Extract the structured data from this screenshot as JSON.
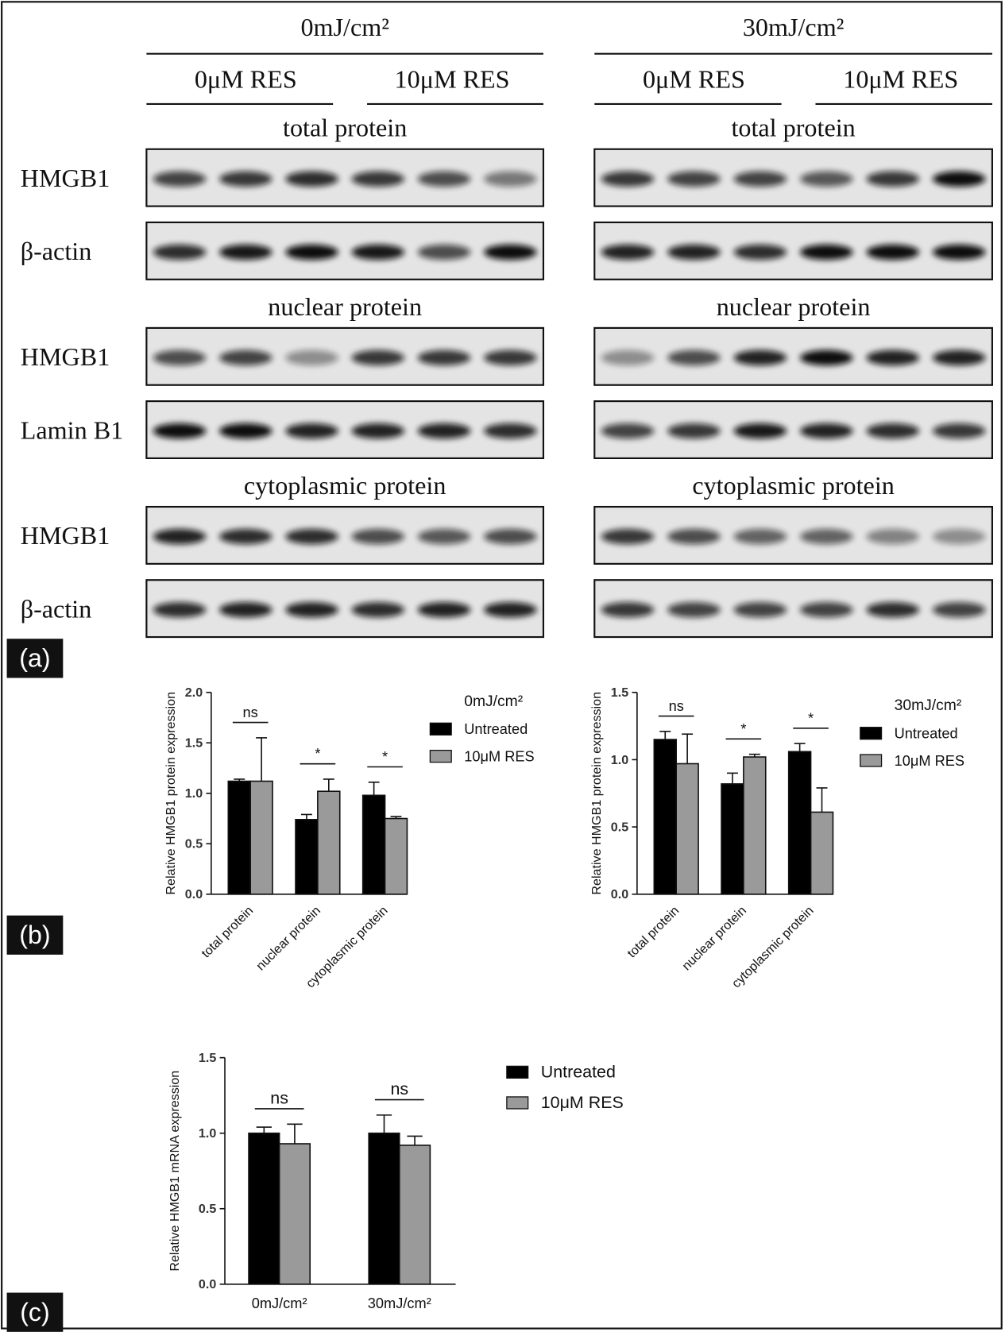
{
  "panel_labels": [
    "(a)",
    "(b)",
    "(c)"
  ],
  "blots": {
    "groups": [
      {
        "title": "0mJ/cm²",
        "treatments": [
          "0μM RES",
          "10μM RES"
        ]
      },
      {
        "title": "30mJ/cm²",
        "treatments": [
          "0μM RES",
          "10μM RES"
        ]
      }
    ],
    "sections": [
      {
        "title": "total protein",
        "rows": [
          "HMGB1",
          "β-actin"
        ]
      },
      {
        "title": "nuclear protein",
        "rows": [
          "HMGB1",
          "Lamin B1"
        ]
      },
      {
        "title": "cytoplasmic protein",
        "rows": [
          "HMGB1",
          "β-actin"
        ]
      }
    ]
  },
  "chart_data": [
    {
      "type": "bar",
      "ylabel": "Relative HMGB1 protein expression",
      "legend_title": "0mJ/cm²",
      "categories": [
        "total protein",
        "nuclear protein",
        "cytoplasmic protein"
      ],
      "series": [
        {
          "name": "Untreated",
          "color": "#000000",
          "values": [
            1.12,
            0.74,
            0.98
          ],
          "errors": [
            0.02,
            0.05,
            0.13
          ]
        },
        {
          "name": "10μM RES",
          "color": "#9a9a9a",
          "values": [
            1.12,
            1.02,
            0.75
          ],
          "errors": [
            0.43,
            0.12,
            0.02
          ]
        }
      ],
      "annotations": [
        "ns",
        "*",
        "*"
      ],
      "ylim": [
        0,
        2
      ],
      "yticks": [
        {
          "value": 0,
          "label": "0.0"
        },
        {
          "value": 0.5,
          "label": "0.5"
        },
        {
          "value": 1,
          "label": "1.0"
        },
        {
          "value": 1.5,
          "label": "1.5"
        },
        {
          "value": 2,
          "label": "2.0"
        }
      ]
    },
    {
      "type": "bar",
      "ylabel": "Relative HMGB1 protein expression",
      "legend_title": "30mJ/cm²",
      "categories": [
        "total protein",
        "nuclear protein",
        "cytoplasmic protein"
      ],
      "series": [
        {
          "name": "Untreated",
          "color": "#000000",
          "values": [
            1.15,
            0.82,
            1.06
          ],
          "errors": [
            0.06,
            0.08,
            0.06
          ]
        },
        {
          "name": "10μM RES",
          "color": "#9a9a9a",
          "values": [
            0.97,
            1.02,
            0.61
          ],
          "errors": [
            0.22,
            0.02,
            0.18
          ]
        }
      ],
      "annotations": [
        "ns",
        "*",
        "*"
      ],
      "ylim": [
        0,
        1.5
      ],
      "yticks": [
        {
          "value": 0,
          "label": "0.0"
        },
        {
          "value": 0.5,
          "label": "0.5"
        },
        {
          "value": 1,
          "label": "1.0"
        },
        {
          "value": 1.5,
          "label": "1.5"
        }
      ]
    },
    {
      "type": "bar",
      "ylabel": "Relative HMGB1 mRNA expression",
      "categories": [
        "0mJ/cm²",
        "30mJ/cm²"
      ],
      "series": [
        {
          "name": "Untreated",
          "color": "#000000",
          "values": [
            1.0,
            1.0
          ],
          "errors": [
            0.04,
            0.12
          ]
        },
        {
          "name": "10μM RES",
          "color": "#9a9a9a",
          "values": [
            0.93,
            0.92
          ],
          "errors": [
            0.13,
            0.06
          ]
        }
      ],
      "annotations": [
        "ns",
        "ns"
      ],
      "ylim": [
        0,
        1.5
      ],
      "yticks": [
        {
          "value": 0,
          "label": "0.0"
        },
        {
          "value": 0.5,
          "label": "0.5"
        },
        {
          "value": 1,
          "label": "1.0"
        },
        {
          "value": 1.5,
          "label": "1.5"
        }
      ]
    }
  ]
}
